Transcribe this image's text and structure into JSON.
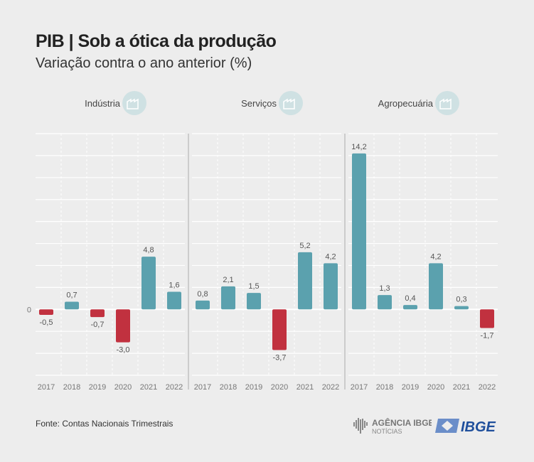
{
  "title": "PIB | Sob a ótica da produção",
  "subtitle": "Variação contra o ano anterior (%)",
  "source": "Fonte: Contas Nacionais Trimestrais",
  "logos": {
    "agencia": "AGÊNCIA IBGE NOTÍCIAS",
    "ibge": "IBGE"
  },
  "colors": {
    "positive": "#5ba1ae",
    "negative": "#c1313f",
    "background": "#ededed",
    "icon_circle": "#cfe1e3"
  },
  "chart_data": {
    "type": "bar",
    "ylim": [
      -6,
      16
    ],
    "grid": true,
    "y_tick_labels": [
      "0"
    ],
    "categories": [
      "2017",
      "2018",
      "2019",
      "2020",
      "2021",
      "2022"
    ],
    "panels": [
      {
        "name": "Indústria",
        "icon": "factory-icon",
        "values": [
          -0.5,
          0.7,
          -0.7,
          -3.0,
          4.8,
          1.6
        ],
        "labels": [
          "-0,5",
          "0,7",
          "-0,7",
          "-3,0",
          "4,8",
          "1,6"
        ]
      },
      {
        "name": "Serviços",
        "icon": "headset-person-icon",
        "values": [
          0.8,
          2.1,
          1.5,
          -3.7,
          5.2,
          4.2
        ],
        "labels": [
          "0,8",
          "2,1",
          "1,5",
          "-3,7",
          "5,2",
          "4,2"
        ]
      },
      {
        "name": "Agropecuária",
        "icon": "plant-icon",
        "values": [
          14.2,
          1.3,
          0.4,
          4.2,
          0.3,
          -1.7
        ],
        "labels": [
          "14,2",
          "1,3",
          "0,4",
          "4,2",
          "0,3",
          "-1,7"
        ]
      }
    ]
  }
}
